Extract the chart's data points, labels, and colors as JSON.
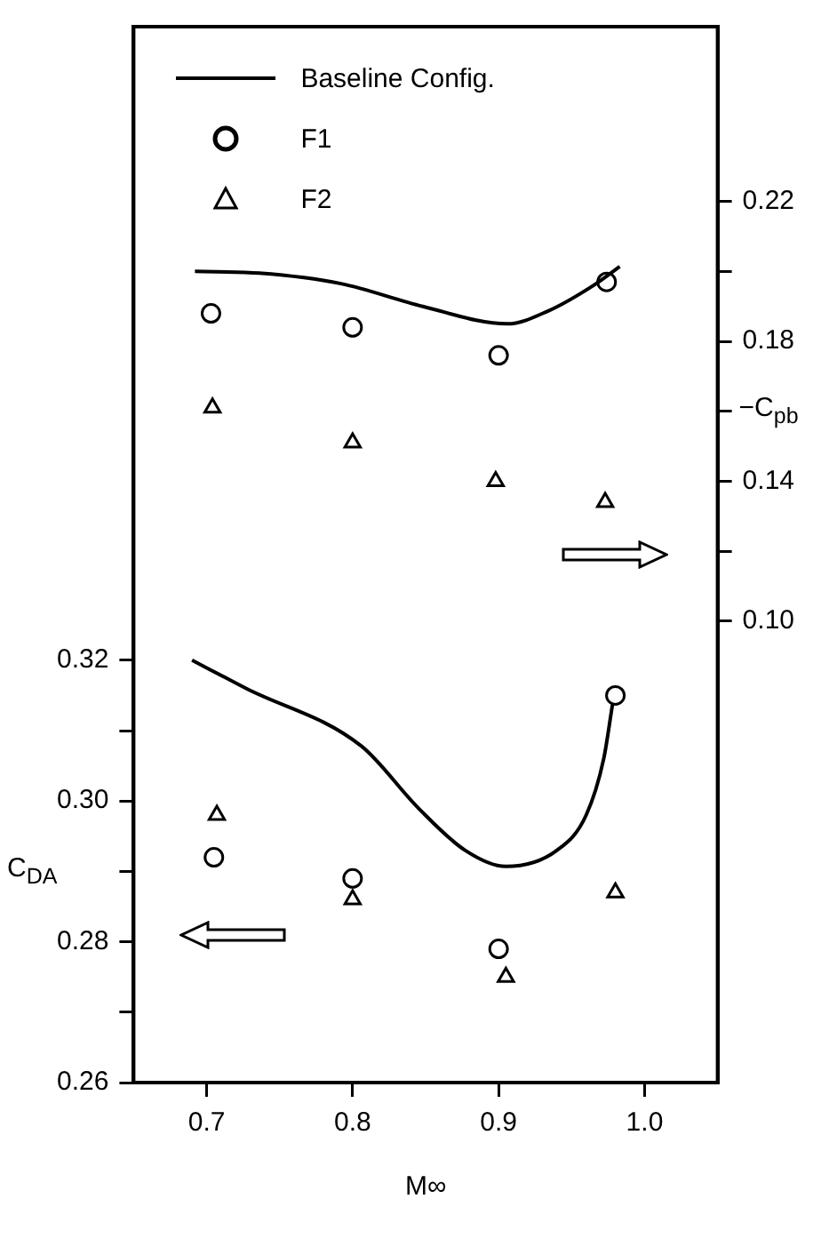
{
  "chart_data": {
    "type": "scatter",
    "xlabel": "M∞",
    "ylabel": "C$_{DA}$",
    "y2label": "−C$_{pb}$",
    "xlim": [
      0.65,
      1.05
    ],
    "xticks": [
      0.7,
      0.8,
      0.9,
      {
        "value": 1,
        "label": "1.0"
      }
    ],
    "ylim": [
      0.26,
      0.41
    ],
    "yticks": [
      0.26,
      {
        "value": 0.27,
        "label": null
      },
      0.28,
      {
        "value": 0.29,
        "label": null
      },
      {
        "value": 0.3,
        "label": "0.30"
      },
      {
        "value": 0.31,
        "label": null
      },
      0.32
    ],
    "y2lim": [
      -0.032,
      0.27
    ],
    "y2ticks": [
      {
        "value": 0.1,
        "label": "0.10"
      },
      {
        "value": 0.12,
        "label": null
      },
      0.14,
      {
        "value": 0.16,
        "label": null
      },
      0.18,
      {
        "value": 0.2,
        "label": null
      },
      0.22
    ],
    "grid": false,
    "legend": "top left",
    "series": [
      {
        "name": "Baseline Config.",
        "type": "line",
        "axis": "y2",
        "color": "#000000",
        "marker": "none",
        "line_style": "solid",
        "x": [
          0.692,
          0.736,
          0.792,
          0.848,
          0.906,
          0.934,
          0.965,
          0.983
        ],
        "values": [
          0.2,
          0.1995,
          0.1965,
          0.19,
          0.185,
          0.1887,
          0.196,
          0.2014
        ]
      },
      {
        "name": "F1",
        "axis": "y2",
        "color": "#000000",
        "marker": "circle",
        "x": [
          0.703,
          0.8,
          0.9,
          0.974
        ],
        "values": [
          0.188,
          0.184,
          0.176,
          0.197
        ]
      },
      {
        "name": "F2",
        "axis": "y2",
        "color": "#000000",
        "marker": "triangle",
        "x": [
          0.704,
          0.8,
          0.898,
          0.973
        ],
        "values": [
          0.161,
          0.151,
          0.14,
          0.134
        ]
      },
      {
        "type": "line",
        "axis": "y",
        "color": "#000000",
        "marker": "none",
        "line_style": "solid",
        "x": [
          0.69,
          0.727,
          0.806,
          0.845,
          0.877,
          0.905,
          0.94,
          0.96,
          0.972,
          0.978
        ],
        "values": [
          0.32,
          0.316,
          0.3078,
          0.299,
          0.293,
          0.2907,
          0.293,
          0.298,
          0.306,
          0.3137
        ]
      },
      {
        "axis": "y",
        "color": "#000000",
        "marker": "circle",
        "x": [
          0.705,
          0.8,
          0.9,
          0.98
        ],
        "values": [
          0.292,
          0.289,
          0.279,
          0.315
        ]
      },
      {
        "axis": "y",
        "color": "#000000",
        "marker": "triangle",
        "x": [
          0.707,
          0.8,
          0.905,
          0.98
        ],
        "values": [
          0.298,
          0.286,
          0.275,
          0.287
        ]
      }
    ]
  }
}
